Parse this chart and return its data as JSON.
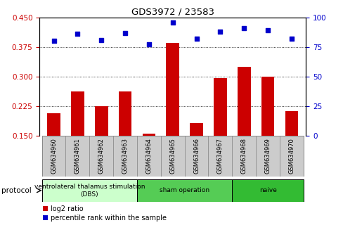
{
  "title": "GDS3972 / 23583",
  "samples": [
    "GSM634960",
    "GSM634961",
    "GSM634962",
    "GSM634963",
    "GSM634964",
    "GSM634965",
    "GSM634966",
    "GSM634967",
    "GSM634968",
    "GSM634969",
    "GSM634970"
  ],
  "log2_ratio": [
    0.207,
    0.262,
    0.225,
    0.262,
    0.155,
    0.385,
    0.182,
    0.296,
    0.325,
    0.3,
    0.213
  ],
  "percentile_rank": [
    80,
    86,
    81,
    87,
    77,
    96,
    82,
    88,
    91,
    89,
    82
  ],
  "ylim_left": [
    0.15,
    0.45
  ],
  "ylim_right": [
    0,
    100
  ],
  "yticks_left": [
    0.15,
    0.225,
    0.3,
    0.375,
    0.45
  ],
  "yticks_right": [
    0,
    25,
    50,
    75,
    100
  ],
  "bar_color": "#cc0000",
  "scatter_color": "#0000cc",
  "protocol_groups": [
    {
      "label": "ventrolateral thalamus stimulation\n(DBS)",
      "start": 0,
      "end": 3,
      "color": "#ccffcc"
    },
    {
      "label": "sham operation",
      "start": 4,
      "end": 7,
      "color": "#55cc55"
    },
    {
      "label": "naive",
      "start": 8,
      "end": 10,
      "color": "#33bb33"
    }
  ],
  "tick_label_color_left": "#cc0000",
  "tick_label_color_right": "#0000cc",
  "bg_color": "#ffffff",
  "sample_bg": "#cccccc",
  "grid_color_dotted": [
    0.225,
    0.3,
    0.375
  ],
  "figsize": [
    4.89,
    3.54
  ],
  "dpi": 100
}
